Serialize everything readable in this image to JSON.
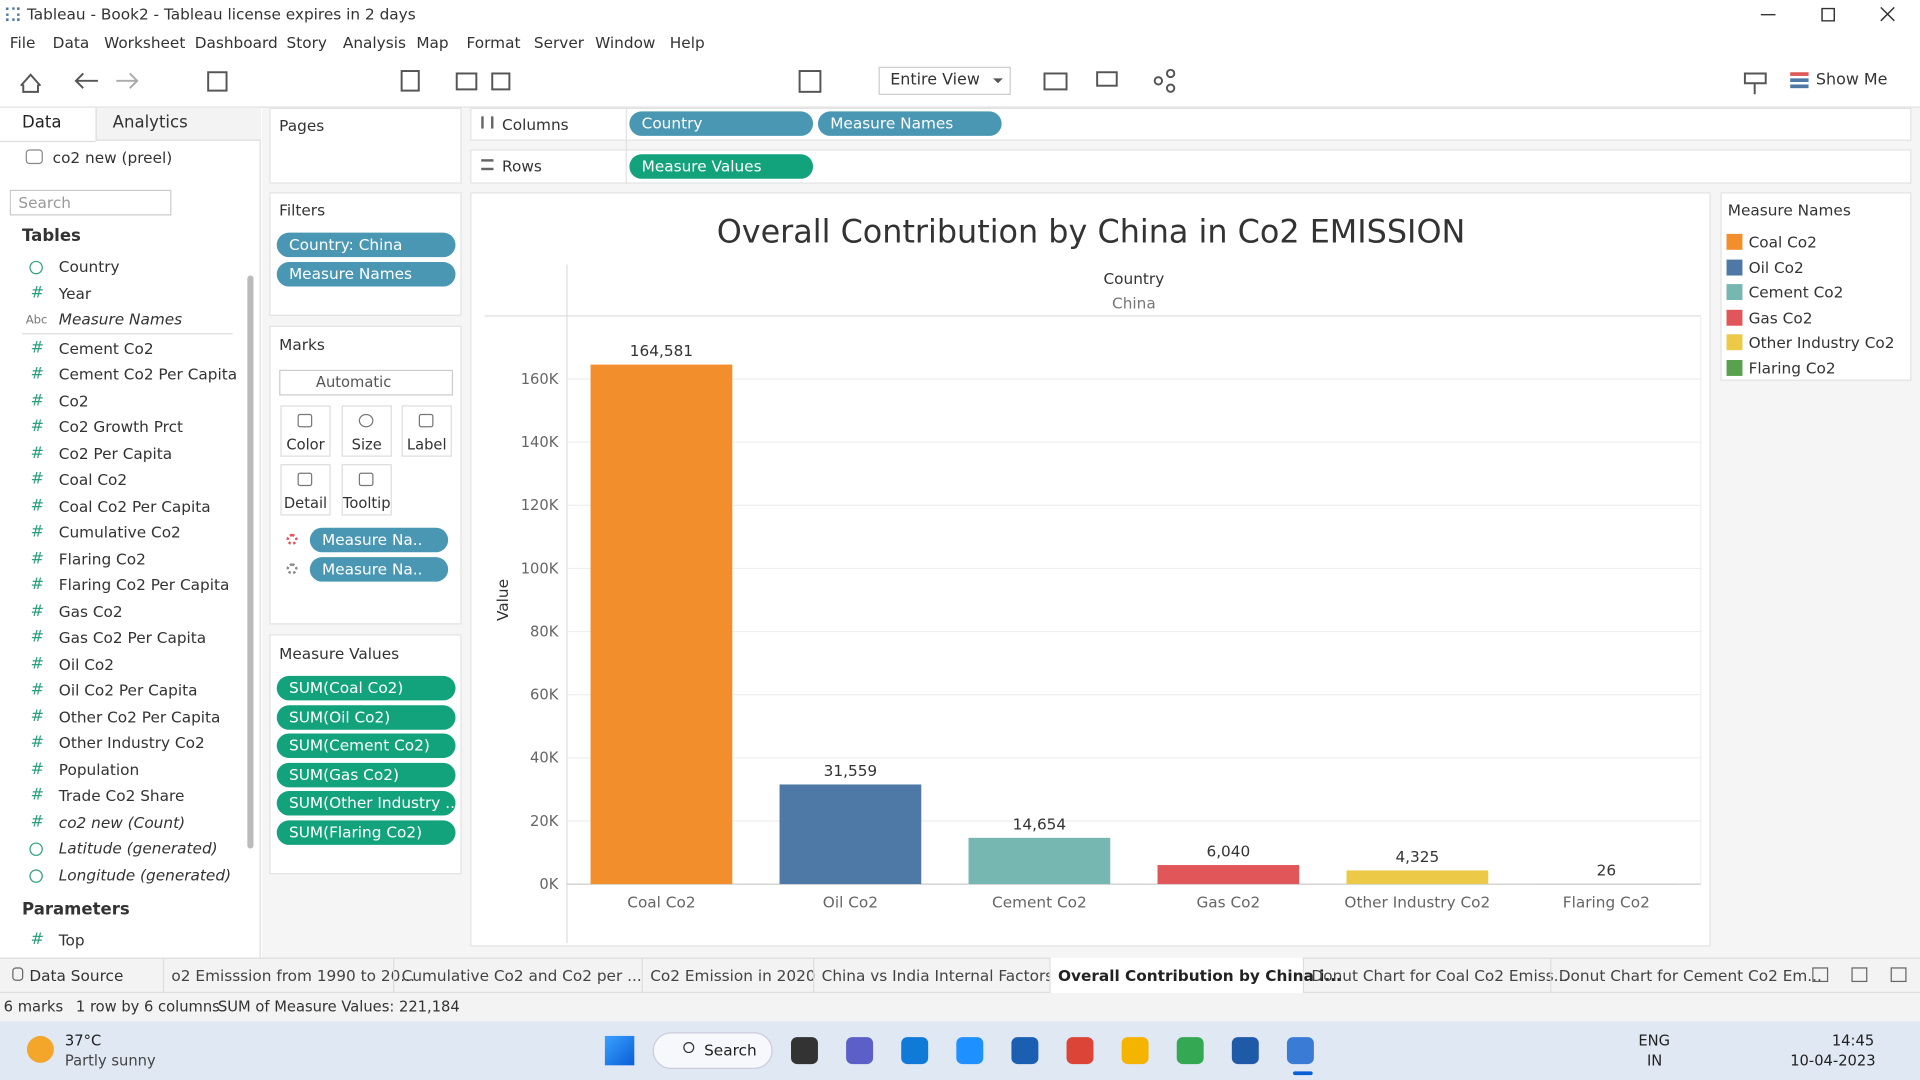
{
  "window": {
    "title": "Tableau - Book2 - Tableau license expires in 2 days"
  },
  "menu": [
    "File",
    "Data",
    "Worksheet",
    "Dashboard",
    "Story",
    "Analysis",
    "Map",
    "Format",
    "Server",
    "Window",
    "Help"
  ],
  "toolbar": {
    "fit": "Entire View",
    "show_me": "Show Me"
  },
  "data_pane": {
    "tabs": [
      "Data",
      "Analytics"
    ],
    "source": "co2 new (preel)",
    "search": "Search",
    "tables_heading": "Tables",
    "fields": [
      {
        "icon": null,
        "name": "Country",
        "italic": false
      },
      {
        "icon": "#",
        "name": "Year",
        "italic": false
      },
      {
        "icon": "Abc",
        "name": "Measure Names",
        "italic": true
      },
      {
        "icon": "#",
        "name": "Cement Co2",
        "italic": false
      },
      {
        "icon": "#",
        "name": "Cement Co2 Per Capita",
        "italic": false
      },
      {
        "icon": "#",
        "name": "Co2",
        "italic": false
      },
      {
        "icon": "#",
        "name": "Co2 Growth Prct",
        "italic": false
      },
      {
        "icon": "#",
        "name": "Co2 Per Capita",
        "italic": false
      },
      {
        "icon": "#",
        "name": "Coal Co2",
        "italic": false
      },
      {
        "icon": "#",
        "name": "Coal Co2 Per Capita",
        "italic": false
      },
      {
        "icon": "#",
        "name": "Cumulative Co2",
        "italic": false
      },
      {
        "icon": "#",
        "name": "Flaring Co2",
        "italic": false
      },
      {
        "icon": "#",
        "name": "Flaring Co2 Per Capita",
        "italic": false
      },
      {
        "icon": "#",
        "name": "Gas Co2",
        "italic": false
      },
      {
        "icon": "#",
        "name": "Gas Co2 Per Capita",
        "italic": false
      },
      {
        "icon": "#",
        "name": "Oil Co2",
        "italic": false
      },
      {
        "icon": "#",
        "name": "Oil Co2 Per Capita",
        "italic": false
      },
      {
        "icon": "#",
        "name": "Other Co2 Per Capita",
        "italic": false
      },
      {
        "icon": "#",
        "name": "Other Industry Co2",
        "italic": false
      },
      {
        "icon": "#",
        "name": "Population",
        "italic": false
      },
      {
        "icon": "#",
        "name": "Trade Co2 Share",
        "italic": false
      },
      {
        "icon": "#",
        "name": "co2 new (Count)",
        "italic": true
      },
      {
        "icon": null,
        "name": "Latitude (generated)",
        "italic": true
      },
      {
        "icon": null,
        "name": "Longitude (generated)",
        "italic": true
      }
    ],
    "parameters_heading": "Parameters",
    "parameters": [
      {
        "icon": "#",
        "name": "Top",
        "italic": false
      }
    ]
  },
  "shelves": {
    "pages": "Pages",
    "columns_label": "Columns",
    "columns": [
      "Country",
      "Measure Names"
    ],
    "rows_label": "Rows",
    "rows": [
      "Measure Values"
    ]
  },
  "filters": {
    "title": "Filters",
    "pills": [
      "Country: China",
      "Measure Names"
    ]
  },
  "marks": {
    "title": "Marks",
    "mark_type": "Automatic",
    "buttons": [
      "Color",
      "Size",
      "Label",
      "Detail",
      "Tooltip"
    ],
    "pills": [
      "Measure Na..",
      "Measure Na.."
    ]
  },
  "measure_values": {
    "title": "Measure Values",
    "pills": [
      "SUM(Coal Co2)",
      "SUM(Oil Co2)",
      "SUM(Cement Co2)",
      "SUM(Gas Co2)",
      "SUM(Other Industry ..",
      "SUM(Flaring Co2)"
    ]
  },
  "chart_data": {
    "type": "bar",
    "title": "Overall Contribution by China in Co2 EMISSION",
    "column_header": "Country",
    "column_value": "China",
    "y_label": "Value",
    "categories": [
      "Coal Co2",
      "Oil Co2",
      "Cement Co2",
      "Gas Co2",
      "Other Industry Co2",
      "Flaring Co2"
    ],
    "values": [
      164581,
      31559,
      14654,
      6040,
      4325,
      26
    ],
    "value_labels": [
      "164,581",
      "31,559",
      "14,654",
      "6,040",
      "4,325",
      "26"
    ],
    "colors": [
      "#f28e2b",
      "#4e79a7",
      "#76b7b2",
      "#e15759",
      "#edc948",
      "#59a14f"
    ],
    "ylim": [
      0,
      180000
    ],
    "yticks": [
      {
        "value": 0,
        "label": "0K"
      },
      {
        "value": 20000,
        "label": "20K"
      },
      {
        "value": 40000,
        "label": "40K"
      },
      {
        "value": 60000,
        "label": "60K"
      },
      {
        "value": 80000,
        "label": "80K"
      },
      {
        "value": 100000,
        "label": "100K"
      },
      {
        "value": 120000,
        "label": "120K"
      },
      {
        "value": 140000,
        "label": "140K"
      },
      {
        "value": 160000,
        "label": "160K"
      }
    ],
    "grid": true,
    "legend_title": "Measure Names"
  },
  "sheet_tabs": {
    "data_source": "Data Source",
    "items": [
      "o2 Emisssion from 1990 to 20...",
      "Cumulative Co2 and Co2 per ...",
      "Co2 Emission in 2020",
      "China vs India Internal Factors",
      "Overall Contribution by China i...",
      "Donut Chart for Coal Co2 Emiss...",
      "Donut Chart for Cement Co2 Em..."
    ],
    "active": 4
  },
  "status": {
    "marks": "6 marks",
    "dims": "1 row by 6 columns",
    "sum": "SUM of Measure Values: 221,184"
  },
  "taskbar": {
    "temperature": "37°C",
    "weather": "Partly sunny",
    "search": "Search",
    "lang": "ENG",
    "region": "IN",
    "time": "14:45",
    "date": "10-04-2023"
  }
}
